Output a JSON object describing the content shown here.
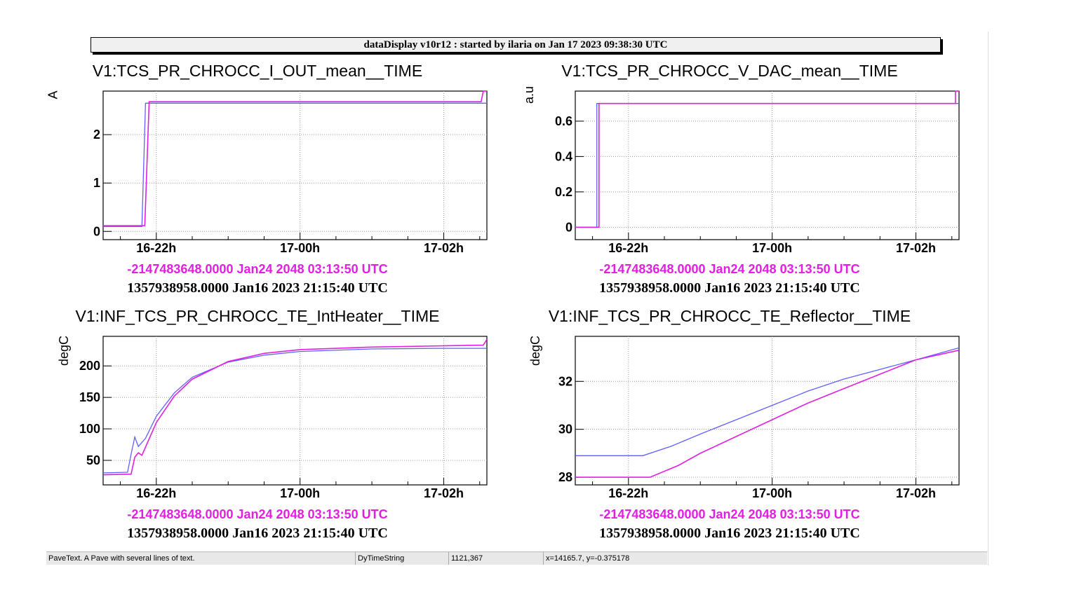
{
  "header": "dataDisplay v10r12 : started by ilaria on Jan 17 2023 09:38:30 UTC",
  "colors": {
    "series1": "#6060ff",
    "series2": "#e020e0",
    "grid": "#999999"
  },
  "x_ticks": [
    {
      "t": 22,
      "label": "16-22h"
    },
    {
      "t": 24,
      "label": "17-00h"
    },
    {
      "t": 26,
      "label": "17-02h"
    }
  ],
  "panels": [
    {
      "title": "V1:TCS_PR_CHROCC_I_OUT_mean__TIME",
      "ylabel": "A",
      "line1": "-2147483648.0000 Jan24 2048 03:13:50 UTC",
      "line2": "1357938958.0000 Jan16 2023 21:15:40 UTC"
    },
    {
      "title": "V1:TCS_PR_CHROCC_V_DAC_mean__TIME",
      "ylabel": "a.u",
      "line1": "-2147483648.0000 Jan24 2048 03:13:50 UTC",
      "line2": "1357938958.0000 Jan16 2023 21:15:40 UTC"
    },
    {
      "title": "V1:INF_TCS_PR_CHROCC_TE_IntHeater__TIME",
      "ylabel": "degC",
      "line1": "-2147483648.0000 Jan24 2048 03:13:50 UTC",
      "line2": "1357938958.0000 Jan16 2023 21:15:40 UTC"
    },
    {
      "title": "V1:INF_TCS_PR_CHROCC_TE_Reflector__TIME",
      "ylabel": "degC",
      "line1": "-2147483648.0000 Jan24 2048 03:13:50 UTC",
      "line2": "1357938958.0000 Jan16 2023 21:15:40 UTC"
    }
  ],
  "chart_data": [
    {
      "type": "line",
      "title": "V1:TCS_PR_CHROCC_I_OUT_mean__TIME",
      "ylabel": "A",
      "xlim": [
        21.26,
        26.6
      ],
      "ylim": [
        -0.17,
        2.9
      ],
      "yticks": [
        0,
        1,
        2
      ],
      "series": [
        {
          "name": "blue",
          "points": [
            [
              21.26,
              0.1
            ],
            [
              21.8,
              0.1
            ],
            [
              21.85,
              2.65
            ],
            [
              26.6,
              2.65
            ]
          ]
        },
        {
          "name": "magenta",
          "points": [
            [
              21.26,
              0.12
            ],
            [
              21.84,
              0.12
            ],
            [
              21.9,
              2.68
            ],
            [
              26.52,
              2.68
            ],
            [
              26.55,
              2.9
            ],
            [
              26.6,
              2.9
            ]
          ]
        }
      ]
    },
    {
      "type": "line",
      "title": "V1:TCS_PR_CHROCC_V_DAC_mean__TIME",
      "ylabel": "a.u",
      "xlim": [
        21.26,
        26.6
      ],
      "ylim": [
        -0.07,
        0.77
      ],
      "yticks": [
        0,
        0.2,
        0.4,
        0.6
      ],
      "series": [
        {
          "name": "blue",
          "points": [
            [
              21.26,
              0
            ],
            [
              21.56,
              0
            ],
            [
              21.56,
              0.7
            ],
            [
              26.6,
              0.7
            ]
          ]
        },
        {
          "name": "magenta",
          "points": [
            [
              21.26,
              0
            ],
            [
              21.59,
              0
            ],
            [
              21.59,
              0.7
            ],
            [
              26.55,
              0.7
            ],
            [
              26.55,
              0.77
            ],
            [
              26.6,
              0.77
            ]
          ]
        }
      ]
    },
    {
      "type": "line",
      "title": "V1:INF_TCS_PR_CHROCC_TE_IntHeater__TIME",
      "ylabel": "degC",
      "xlim": [
        21.26,
        26.6
      ],
      "ylim": [
        11,
        247
      ],
      "yticks": [
        50,
        100,
        150,
        200
      ],
      "series": [
        {
          "name": "blue",
          "points": [
            [
              21.26,
              30
            ],
            [
              21.6,
              31
            ],
            [
              21.65,
              60
            ],
            [
              21.7,
              87
            ],
            [
              21.75,
              72
            ],
            [
              21.85,
              85
            ],
            [
              22,
              120
            ],
            [
              22.25,
              157
            ],
            [
              22.5,
              182
            ],
            [
              23,
              206
            ],
            [
              23.5,
              217
            ],
            [
              24,
              223
            ],
            [
              25,
              227
            ],
            [
              26,
              228
            ],
            [
              26.6,
              228
            ]
          ]
        },
        {
          "name": "magenta",
          "points": [
            [
              21.26,
              27
            ],
            [
              21.65,
              28
            ],
            [
              21.7,
              55
            ],
            [
              21.75,
              62
            ],
            [
              21.8,
              58
            ],
            [
              22,
              110
            ],
            [
              22.25,
              152
            ],
            [
              22.5,
              179
            ],
            [
              23,
              207
            ],
            [
              23.5,
              220
            ],
            [
              24,
              226
            ],
            [
              25,
              230
            ],
            [
              26,
              232
            ],
            [
              26.55,
              233
            ],
            [
              26.6,
              242
            ]
          ]
        }
      ]
    },
    {
      "type": "line",
      "title": "V1:INF_TCS_PR_CHROCC_TE_Reflector__TIME",
      "ylabel": "degC",
      "xlim": [
        21.26,
        26.6
      ],
      "ylim": [
        27.68,
        33.88
      ],
      "yticks": [
        28,
        30,
        32
      ],
      "series": [
        {
          "name": "blue",
          "points": [
            [
              21.26,
              28.9
            ],
            [
              22.2,
              28.9
            ],
            [
              22.6,
              29.3
            ],
            [
              23,
              29.8
            ],
            [
              23.5,
              30.4
            ],
            [
              24,
              31.0
            ],
            [
              24.5,
              31.6
            ],
            [
              25,
              32.1
            ],
            [
              25.5,
              32.5
            ],
            [
              26,
              32.9
            ],
            [
              26.6,
              33.4
            ]
          ]
        },
        {
          "name": "magenta",
          "points": [
            [
              21.26,
              28.0
            ],
            [
              22.3,
              28.0
            ],
            [
              22.7,
              28.5
            ],
            [
              23,
              29.0
            ],
            [
              23.5,
              29.7
            ],
            [
              24,
              30.4
            ],
            [
              24.5,
              31.1
            ],
            [
              25,
              31.7
            ],
            [
              25.5,
              32.3
            ],
            [
              26,
              32.9
            ],
            [
              26.6,
              33.3
            ]
          ]
        }
      ]
    }
  ],
  "status": {
    "object": "PaveText. A Pave with several lines of text.",
    "class": "DyTimeString",
    "pixel": "1121,367",
    "coords": "x=14165.7, y=-0.375178"
  }
}
